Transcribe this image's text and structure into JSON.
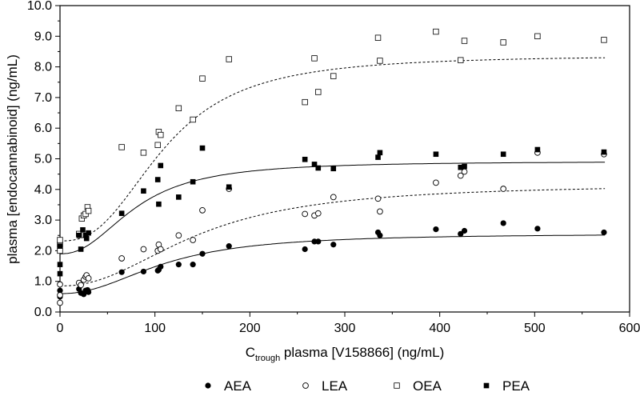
{
  "chart_data": {
    "type": "scatter",
    "xlabel": "C",
    "xlabel_sub": "trough",
    "xlabel_rest": " plasma [V158866] (ng/mL)",
    "ylabel": "plasma [endocannabinoid] (ng/mL)",
    "xlim": [
      0,
      600
    ],
    "ylim": [
      0,
      10
    ],
    "x_ticks": [
      "0",
      "100",
      "200",
      "300",
      "400",
      "500",
      "600"
    ],
    "y_ticks": [
      "0.0",
      "1.0",
      "2.0",
      "3.0",
      "4.0",
      "5.0",
      "6.0",
      "7.0",
      "8.0",
      "9.0",
      "10.0"
    ],
    "grid": false,
    "legend_position": "bottom",
    "series": [
      {
        "name": "AEA",
        "marker": "filled-circle",
        "points": [
          [
            0,
            0.5
          ],
          [
            0,
            0.7
          ],
          [
            20,
            0.75
          ],
          [
            22,
            0.62
          ],
          [
            25,
            0.58
          ],
          [
            27,
            0.7
          ],
          [
            29,
            0.72
          ],
          [
            30,
            0.65
          ],
          [
            65,
            1.3
          ],
          [
            88,
            1.32
          ],
          [
            103,
            1.35
          ],
          [
            104,
            1.38
          ],
          [
            106,
            1.48
          ],
          [
            125,
            1.55
          ],
          [
            140,
            1.55
          ],
          [
            150,
            1.9
          ],
          [
            178,
            2.15
          ],
          [
            258,
            2.05
          ],
          [
            268,
            2.3
          ],
          [
            272,
            2.3
          ],
          [
            288,
            2.2
          ],
          [
            335,
            2.6
          ],
          [
            337,
            2.5
          ],
          [
            396,
            2.7
          ],
          [
            422,
            2.55
          ],
          [
            426,
            2.65
          ],
          [
            467,
            2.9
          ],
          [
            503,
            2.72
          ],
          [
            573,
            2.6
          ]
        ],
        "fit": {
          "y0": 0.6,
          "ymax": 2.56,
          "ec50": 110,
          "n": 2.2,
          "dash": "solid"
        }
      },
      {
        "name": "LEA",
        "marker": "open-circle",
        "points": [
          [
            0,
            0.3
          ],
          [
            0,
            0.55
          ],
          [
            0,
            0.9
          ],
          [
            20,
            0.95
          ],
          [
            22,
            0.88
          ],
          [
            25,
            1.05
          ],
          [
            27,
            1.15
          ],
          [
            28,
            1.2
          ],
          [
            30,
            1.1
          ],
          [
            65,
            1.75
          ],
          [
            88,
            2.05
          ],
          [
            103,
            2.0
          ],
          [
            104,
            2.2
          ],
          [
            106,
            2.05
          ],
          [
            125,
            2.5
          ],
          [
            140,
            2.35
          ],
          [
            150,
            3.32
          ],
          [
            178,
            4.02
          ],
          [
            258,
            3.2
          ],
          [
            268,
            3.15
          ],
          [
            272,
            3.22
          ],
          [
            288,
            3.75
          ],
          [
            335,
            3.7
          ],
          [
            337,
            3.28
          ],
          [
            396,
            4.22
          ],
          [
            422,
            4.45
          ],
          [
            426,
            4.58
          ],
          [
            467,
            4.02
          ],
          [
            503,
            5.2
          ],
          [
            573,
            5.15
          ]
        ],
        "fit": {
          "y0": 0.85,
          "ymax": 4.18,
          "ec50": 145,
          "n": 2.2,
          "dash": "dashed"
        }
      },
      {
        "name": "OEA",
        "marker": "open-square",
        "points": [
          [
            0,
            2.0
          ],
          [
            0,
            2.2
          ],
          [
            0,
            2.35
          ],
          [
            20,
            2.55
          ],
          [
            23,
            3.05
          ],
          [
            25,
            3.15
          ],
          [
            27,
            3.2
          ],
          [
            29,
            3.42
          ],
          [
            30,
            3.3
          ],
          [
            65,
            5.38
          ],
          [
            88,
            5.2
          ],
          [
            103,
            5.45
          ],
          [
            104,
            5.88
          ],
          [
            106,
            5.78
          ],
          [
            125,
            6.65
          ],
          [
            140,
            6.28
          ],
          [
            150,
            7.62
          ],
          [
            178,
            8.25
          ],
          [
            258,
            6.85
          ],
          [
            268,
            8.28
          ],
          [
            272,
            7.18
          ],
          [
            288,
            7.7
          ],
          [
            335,
            8.95
          ],
          [
            337,
            8.2
          ],
          [
            396,
            9.15
          ],
          [
            422,
            8.22
          ],
          [
            426,
            8.85
          ],
          [
            467,
            8.8
          ],
          [
            503,
            9.0
          ],
          [
            573,
            8.88
          ]
        ],
        "fit": {
          "y0": 2.32,
          "ymax": 8.38,
          "ec50": 110,
          "n": 2.6,
          "dash": "dashed"
        }
      },
      {
        "name": "PEA",
        "marker": "filled-square",
        "points": [
          [
            0,
            1.25
          ],
          [
            0,
            1.55
          ],
          [
            0,
            2.15
          ],
          [
            20,
            2.5
          ],
          [
            22,
            2.05
          ],
          [
            24,
            2.68
          ],
          [
            27,
            2.5
          ],
          [
            28,
            2.4
          ],
          [
            30,
            2.58
          ],
          [
            65,
            3.22
          ],
          [
            88,
            3.95
          ],
          [
            103,
            4.32
          ],
          [
            104,
            3.52
          ],
          [
            106,
            4.78
          ],
          [
            125,
            3.75
          ],
          [
            140,
            4.25
          ],
          [
            150,
            5.35
          ],
          [
            178,
            4.08
          ],
          [
            258,
            4.98
          ],
          [
            268,
            4.82
          ],
          [
            272,
            4.7
          ],
          [
            288,
            4.68
          ],
          [
            335,
            5.05
          ],
          [
            337,
            5.2
          ],
          [
            396,
            5.15
          ],
          [
            422,
            4.72
          ],
          [
            426,
            4.75
          ],
          [
            467,
            5.15
          ],
          [
            503,
            5.3
          ],
          [
            573,
            5.22
          ]
        ],
        "fit": {
          "y0": 1.9,
          "ymax": 4.92,
          "ec50": 80,
          "n": 2.3,
          "dash": "solid"
        }
      }
    ]
  }
}
